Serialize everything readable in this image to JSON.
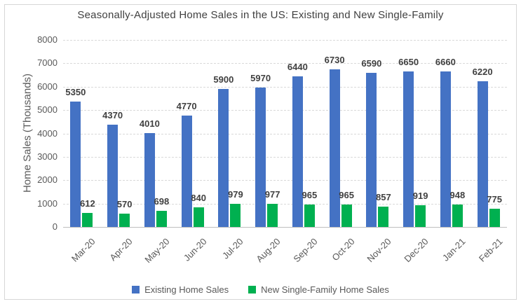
{
  "chart_data": {
    "type": "bar",
    "title": "Seasonally-Adjusted Home Sales in the US: Existing and New Single-Family",
    "ylabel": "Home Sales (Thousands)",
    "xlabel": "",
    "categories": [
      "Mar-20",
      "Apr-20",
      "May-20",
      "Jun-20",
      "Jul-20",
      "Aug-20",
      "Sep-20",
      "Oct-20",
      "Nov-20",
      "Dec-20",
      "Jan-21",
      "Feb-21"
    ],
    "series": [
      {
        "name": "Existing Home Sales",
        "color": "#4472C4",
        "values": [
          5350,
          4370,
          4010,
          4770,
          5900,
          5970,
          6440,
          6730,
          6590,
          6650,
          6660,
          6220
        ]
      },
      {
        "name": "New Single-Family Home Sales",
        "color": "#00B050",
        "values": [
          612,
          570,
          698,
          840,
          979,
          977,
          965,
          965,
          857,
          919,
          948,
          775
        ]
      }
    ],
    "ylim": [
      0,
      8000
    ],
    "yticks": [
      0,
      1000,
      2000,
      3000,
      4000,
      5000,
      6000,
      7000,
      8000
    ],
    "grid": "horizontal-dashed",
    "data_labels": true,
    "legend_position": "bottom"
  },
  "colors": {
    "existing_series": "#4472C4",
    "new_series": "#00B050",
    "gridline": "#D9D9D9",
    "axis_line": "#BFBFBF",
    "title_text": "#404040",
    "data_label_text": "#404040",
    "tick_text": "#595959",
    "chart_border": "#D6D6D6",
    "background": "#FFFFFF"
  }
}
